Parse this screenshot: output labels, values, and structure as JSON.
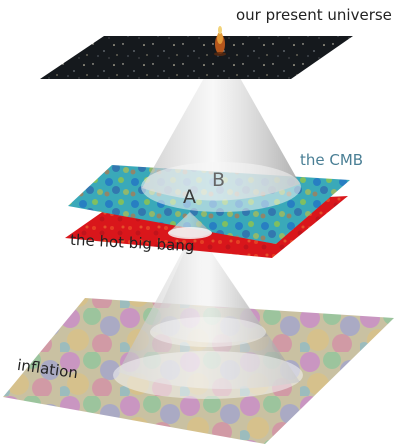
{
  "labels": {
    "present_universe": "our present universe",
    "cmb": "the CMB",
    "hot_big_bang": "the hot big bang",
    "inflation": "inflation",
    "point_a": "A",
    "point_b": "B"
  },
  "colors": {
    "present_plane": "#101418",
    "cmb_plane": "#3aa9b9",
    "hot_big_bang_plane": "#d9161b",
    "cone_light": "#e9e9e9",
    "cmb_label": "#4a7f95"
  },
  "icons": {
    "present_figure": "galaxy-icon"
  }
}
